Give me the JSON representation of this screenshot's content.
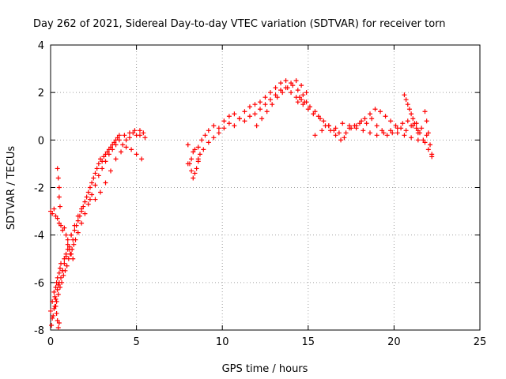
{
  "chart_data": {
    "type": "scatter",
    "title": "Day 262 of 2021, Sidereal Day-to-day VTEC variation (SDTVAR) for receiver torn",
    "xlabel": "GPS time / hours",
    "ylabel": "SDTVAR / TECUs",
    "xlim": [
      0,
      25
    ],
    "ylim": [
      -8,
      4
    ],
    "xticks": [
      "0",
      "5",
      "10",
      "15",
      "20",
      "25"
    ],
    "yticks": [
      "-8",
      "-6",
      "-4",
      "-2",
      "0",
      "2",
      "4"
    ],
    "grid": true,
    "marker": "+",
    "color": "#ff0000",
    "series": [
      {
        "name": "SDTVAR",
        "x": [
          0.0,
          0.1,
          0.2,
          0.25,
          0.3,
          0.35,
          0.4,
          0.45,
          0.5,
          0.55,
          0.6,
          0.7,
          0.8,
          0.9,
          1.0,
          1.1,
          1.2,
          1.3,
          1.4,
          1.5,
          1.6,
          1.7,
          1.8,
          1.9,
          2.0,
          2.1,
          2.2,
          2.3,
          2.4,
          2.5,
          2.6,
          2.7,
          2.8,
          2.9,
          3.0,
          3.1,
          3.2,
          3.3,
          3.4,
          3.5,
          3.6,
          3.7,
          3.8,
          3.9,
          4.0,
          4.2,
          4.4,
          4.6,
          4.8,
          5.0,
          5.2,
          5.4,
          0.05,
          0.15,
          0.25,
          0.35,
          0.45,
          0.55,
          0.65,
          0.75,
          0.85,
          0.95,
          1.05,
          1.15,
          1.25,
          1.35,
          1.45,
          1.6,
          1.8,
          2.0,
          2.2,
          2.4,
          2.6,
          2.8,
          3.0,
          3.2,
          3.4,
          3.6,
          3.8,
          4.0,
          4.3,
          4.6,
          4.9,
          5.2,
          5.5,
          0.1,
          0.2,
          0.3,
          0.4,
          0.5,
          0.6,
          0.7,
          0.8,
          0.9,
          1.0,
          1.2,
          1.4,
          1.6,
          1.8,
          2.0,
          2.3,
          2.6,
          2.9,
          3.2,
          3.5,
          3.8,
          4.1,
          4.4,
          4.7,
          5.0,
          5.3,
          0.0,
          0.1,
          0.2,
          0.3,
          0.4,
          0.5,
          0.6,
          0.7,
          0.8,
          0.9,
          1.0,
          1.1,
          1.2,
          1.3,
          0.4,
          0.45,
          0.5,
          0.5,
          0.55,
          0.3,
          0.35,
          0.4,
          0.45,
          0.5,
          8.0,
          8.2,
          8.4,
          8.6,
          8.8,
          9.0,
          9.2,
          9.5,
          9.8,
          10.1,
          10.4,
          10.7,
          11.0,
          11.3,
          11.6,
          11.9,
          12.2,
          12.5,
          12.8,
          13.1,
          13.4,
          13.7,
          14.0,
          14.3,
          14.6,
          14.9,
          8.0,
          8.3,
          8.6,
          8.9,
          9.2,
          9.5,
          9.8,
          10.1,
          10.4,
          10.7,
          11.0,
          11.3,
          11.6,
          11.9,
          12.2,
          12.5,
          12.8,
          13.1,
          13.4,
          13.7,
          14.0,
          14.3,
          14.6,
          14.9,
          8.1,
          8.2,
          8.3,
          8.4,
          8.5,
          8.6,
          8.7,
          12.0,
          12.3,
          12.6,
          12.9,
          13.2,
          13.5,
          13.8,
          14.1,
          14.4,
          14.7,
          14.4,
          14.7,
          15.0,
          15.3,
          15.6,
          15.9,
          16.2,
          16.5,
          16.8,
          17.1,
          17.4,
          17.7,
          18.0,
          18.3,
          18.6,
          18.9,
          19.2,
          19.5,
          19.8,
          20.1,
          20.4,
          20.7,
          21.0,
          21.3,
          21.6,
          21.9,
          22.2,
          14.5,
          14.8,
          15.1,
          15.4,
          15.7,
          16.0,
          16.3,
          16.6,
          16.9,
          17.2,
          17.5,
          17.8,
          18.1,
          18.4,
          18.7,
          19.0,
          19.3,
          19.6,
          19.9,
          20.2,
          20.5,
          20.8,
          21.1,
          21.4,
          21.7,
          22.0,
          15.4,
          15.8,
          16.2,
          16.6,
          17.0,
          17.4,
          17.8,
          18.2,
          18.6,
          19.0,
          19.4,
          19.8,
          20.2,
          20.6,
          21.0,
          21.4,
          21.8,
          20.6,
          20.7,
          20.8,
          20.9,
          21.0,
          21.1,
          21.2,
          21.3,
          21.4,
          21.5,
          21.8,
          21.9,
          22.0,
          22.1,
          22.2
        ],
        "y": [
          -7.2,
          -6.8,
          -6.4,
          -6.6,
          -6.2,
          -6.0,
          -5.8,
          -6.1,
          -5.6,
          -5.4,
          -5.2,
          -5.5,
          -5.0,
          -4.8,
          -4.4,
          -4.6,
          -4.0,
          -4.2,
          -3.8,
          -3.6,
          -3.4,
          -3.2,
          -3.0,
          -2.8,
          -2.6,
          -2.4,
          -2.2,
          -2.0,
          -1.8,
          -1.6,
          -1.4,
          -1.2,
          -1.0,
          -0.8,
          -0.9,
          -0.7,
          -0.6,
          -0.5,
          -0.4,
          -0.3,
          -0.2,
          -0.1,
          0.0,
          0.1,
          0.2,
          -0.2,
          0.0,
          0.1,
          0.3,
          0.2,
          0.4,
          0.3,
          -7.8,
          -7.4,
          -7.0,
          -6.8,
          -6.5,
          -6.2,
          -6.0,
          -5.7,
          -5.5,
          -5.3,
          -5.0,
          -4.8,
          -4.6,
          -4.4,
          -4.2,
          -3.9,
          -3.5,
          -3.1,
          -2.7,
          -2.3,
          -1.9,
          -1.5,
          -1.2,
          -0.9,
          -0.6,
          -0.4,
          -0.2,
          0.0,
          0.2,
          0.3,
          0.4,
          0.2,
          0.1,
          -7.5,
          -7.1,
          -6.7,
          -6.3,
          -6.0,
          -5.8,
          -5.5,
          -5.2,
          -4.9,
          -4.6,
          -4.0,
          -3.6,
          -3.2,
          -2.9,
          -2.6,
          -2.5,
          -2.5,
          -2.2,
          -1.8,
          -1.3,
          -0.8,
          -0.5,
          -0.3,
          -0.4,
          -0.6,
          -0.8,
          -3.0,
          -3.1,
          -2.9,
          -3.2,
          -3.3,
          -3.5,
          -3.6,
          -3.8,
          -3.7,
          -4.0,
          -4.2,
          -4.5,
          -4.8,
          -5.0,
          -1.2,
          -1.6,
          -2.0,
          -2.4,
          -2.8,
          -7.0,
          -7.3,
          -7.6,
          -7.9,
          -7.7,
          -1.0,
          -0.8,
          -0.4,
          -0.3,
          0.0,
          0.2,
          0.4,
          0.6,
          0.5,
          0.8,
          1.0,
          1.1,
          0.9,
          1.2,
          1.4,
          1.5,
          1.6,
          1.8,
          2.0,
          2.2,
          2.4,
          2.5,
          2.4,
          2.5,
          2.3,
          2.0,
          -0.2,
          -0.5,
          -0.8,
          -0.4,
          -0.1,
          0.1,
          0.3,
          0.5,
          0.7,
          0.6,
          0.9,
          0.8,
          1.0,
          1.1,
          1.3,
          1.5,
          1.7,
          1.9,
          2.1,
          2.2,
          2.0,
          1.8,
          1.7,
          1.6,
          -1.0,
          -1.3,
          -1.6,
          -1.4,
          -1.2,
          -0.9,
          -0.6,
          0.6,
          0.9,
          1.2,
          1.5,
          1.8,
          2.0,
          2.2,
          2.3,
          2.1,
          1.9,
          1.6,
          1.5,
          1.3,
          1.1,
          1.0,
          0.8,
          0.6,
          0.4,
          0.3,
          0.1,
          0.5,
          0.6,
          0.7,
          0.9,
          1.1,
          1.3,
          1.2,
          1.0,
          0.8,
          0.6,
          0.5,
          0.4,
          0.6,
          0.7,
          0.5,
          0.2,
          -0.6,
          1.8,
          1.6,
          1.4,
          1.2,
          0.9,
          0.6,
          0.4,
          0.2,
          0.0,
          0.3,
          0.5,
          0.6,
          0.8,
          0.7,
          0.9,
          0.6,
          0.4,
          0.2,
          0.3,
          0.5,
          0.7,
          0.8,
          0.6,
          0.3,
          0.0,
          -0.4,
          0.2,
          0.4,
          0.6,
          0.5,
          0.7,
          0.6,
          0.5,
          0.4,
          0.3,
          0.2,
          0.3,
          0.4,
          0.3,
          0.2,
          0.1,
          0.0,
          -0.1,
          1.9,
          1.7,
          1.5,
          1.3,
          1.1,
          0.9,
          0.7,
          0.5,
          0.4,
          0.3,
          1.2,
          0.8,
          0.3,
          -0.2,
          -0.7
        ]
      }
    ]
  }
}
